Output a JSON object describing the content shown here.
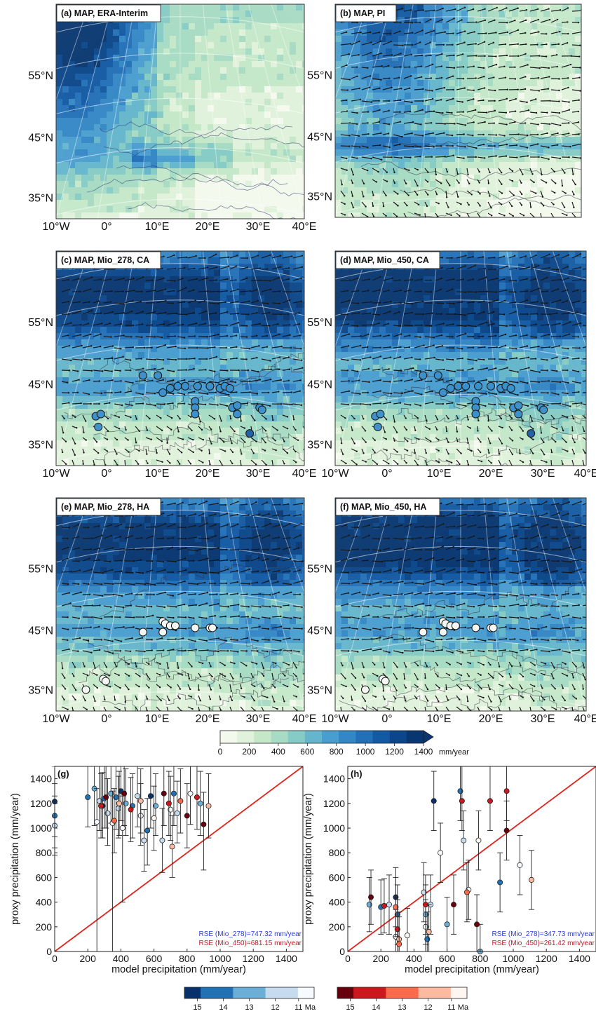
{
  "maps": [
    {
      "label": "(a) MAP, ERA-Interim",
      "winds": false,
      "sites": null,
      "variant": 0,
      "lat_labels": [
        "55°N",
        "45°N",
        "35°N"
      ],
      "lon_labels": [
        "10°W",
        "0°",
        "10°E",
        "20°E",
        "30°E",
        "40°E"
      ]
    },
    {
      "label": "(b) MAP, PI",
      "winds": true,
      "sites": null,
      "variant": 1,
      "lat_labels": [
        "55°N",
        "45°N",
        "35°N"
      ],
      "lon_labels": []
    },
    {
      "label": "(c) MAP, Mio_278, CA",
      "winds": true,
      "sites": "blue",
      "variant": 2,
      "lat_labels": [
        "55°N",
        "45°N",
        "35°N"
      ],
      "lon_labels": [
        "10°W",
        "0°",
        "10°E",
        "20°E",
        "30°E",
        "40°E"
      ]
    },
    {
      "label": "(d) MAP, Mio_450, CA",
      "winds": true,
      "sites": "blue",
      "variant": 3,
      "lat_labels": [
        "55°N",
        "45°N",
        "35°N"
      ],
      "lon_labels": [
        "10°W",
        "0°",
        "10°E",
        "20°E",
        "30°E",
        "40°E"
      ]
    },
    {
      "label": "(e) MAP, Mio_278, HA",
      "winds": true,
      "sites": "white",
      "variant": 4,
      "lat_labels": [
        "55°N",
        "45°N",
        "35°N"
      ],
      "lon_labels": [
        "10°W",
        "0°",
        "10°E",
        "20°E",
        "30°E",
        "40°E"
      ]
    },
    {
      "label": "(f) MAP, Mio_450, HA",
      "winds": true,
      "sites": "white",
      "variant": 5,
      "lat_labels": [
        "55°N",
        "45°N",
        "35°N"
      ],
      "lon_labels": [
        "10°W",
        "0°",
        "10°E",
        "20°E",
        "30°E",
        "40°E"
      ]
    }
  ],
  "colorbar": {
    "ticks": [
      "0",
      "200",
      "400",
      "600",
      "800",
      "1000",
      "1200",
      "1400"
    ],
    "unit": "mm/year",
    "colors": [
      "#f4f9ed",
      "#e0f2db",
      "#c5e8c9",
      "#a7dbc3",
      "#86cbc5",
      "#65b6cc",
      "#4a9ecf",
      "#3487c5",
      "#2370b7",
      "#135aa3",
      "#0a4689",
      "#083670"
    ]
  },
  "age_colorbars": [
    {
      "ticks": [
        "15",
        "14",
        "13",
        "12",
        "11"
      ],
      "unit": "Ma",
      "colors": [
        "#08306b",
        "#2171b5",
        "#6baed6",
        "#c6dbef",
        "#f7fbff"
      ]
    },
    {
      "ticks": [
        "15",
        "14",
        "13",
        "12",
        "11"
      ],
      "unit": "Ma",
      "colors": [
        "#67000d",
        "#cb181d",
        "#fb6a4a",
        "#fcbba1",
        "#fff5f0"
      ]
    }
  ],
  "chart_data": [
    {
      "type": "scatter",
      "panel_label": "(g)",
      "xlabel": "model precipitation (mm/year)",
      "ylabel": "proxy precipitation (mm/year)",
      "xlim": [
        0,
        1500
      ],
      "ylim": [
        0,
        1500
      ],
      "xticks": [
        0,
        200,
        400,
        600,
        800,
        1000,
        1200,
        1400
      ],
      "yticks": [
        0,
        200,
        400,
        600,
        800,
        1000,
        1200,
        1400
      ],
      "one_to_one_line": true,
      "rse": [
        {
          "label": "RSE (Mio_278)=747.32 mm/year",
          "color": "#2b3bd6"
        },
        {
          "label": "RSE (Mio_450)=681.15 mm/year",
          "color": "#c8182c"
        }
      ],
      "series": [
        {
          "name": "Mio_278",
          "color_scale": "blue",
          "points": [
            [
              0,
              1215,
              1500,
              930,
              15
            ],
            [
              0,
              1100,
              1360,
              840,
              14
            ],
            [
              0,
              1020,
              1260,
              780,
              12
            ],
            [
              200,
              1250,
              1500,
              1010,
              14
            ],
            [
              240,
              1320,
              1500,
              1020,
              13
            ],
            [
              255,
              1050,
              1320,
              0,
              11
            ],
            [
              270,
              1220,
              1500,
              980,
              12
            ],
            [
              290,
              1180,
              1450,
              920,
              15
            ],
            [
              300,
              1240,
              1500,
              1000,
              14
            ],
            [
              320,
              1120,
              1400,
              860,
              12
            ],
            [
              340,
              1280,
              1500,
              1040,
              13
            ],
            [
              350,
              1040,
              1300,
              0,
              11
            ],
            [
              370,
              1250,
              1500,
              990,
              14
            ],
            [
              385,
              1160,
              1420,
              920,
              12
            ],
            [
              400,
              1300,
              1500,
              1060,
              15
            ],
            [
              410,
              1000,
              1260,
              400,
              11
            ],
            [
              430,
              1200,
              1480,
              940,
              13
            ],
            [
              470,
              1180,
              1440,
              920,
              14
            ],
            [
              500,
              1260,
              1500,
              1010,
              12
            ],
            [
              520,
              1100,
              1360,
              860,
              11
            ],
            [
              540,
              900,
              1150,
              650,
              12
            ],
            [
              560,
              980,
              1240,
              700,
              14
            ],
            [
              580,
              1260,
              1500,
              1000,
              15
            ],
            [
              610,
              1180,
              1440,
              940,
              13
            ],
            [
              650,
              900,
              1160,
              640,
              12
            ],
            [
              700,
              1150,
              1420,
              900,
              11
            ],
            [
              720,
              1280,
              1500,
              1020,
              14
            ],
            [
              740,
              1120,
              1380,
              880,
              12
            ],
            [
              820,
              1280,
              1500,
              1030,
              11
            ],
            [
              880,
              1200,
              1460,
              940,
              13
            ]
          ]
        },
        {
          "name": "Mio_450",
          "color_scale": "red",
          "points": [
            [
              280,
              1180,
              1440,
              920,
              14
            ],
            [
              310,
              1250,
              1500,
              1000,
              15
            ],
            [
              360,
              1060,
              1320,
              800,
              13
            ],
            [
              390,
              1200,
              1460,
              940,
              12
            ],
            [
              420,
              1280,
              1500,
              1020,
              15
            ],
            [
              460,
              1150,
              1410,
              890,
              14
            ],
            [
              520,
              1220,
              1480,
              960,
              12
            ],
            [
              600,
              1080,
              1340,
              820,
              11
            ],
            [
              660,
              1280,
              1500,
              1020,
              15
            ],
            [
              690,
              1200,
              1460,
              940,
              14
            ],
            [
              710,
              850,
              1100,
              600,
              12
            ],
            [
              760,
              1220,
              1480,
              960,
              13
            ],
            [
              800,
              1100,
              1360,
              840,
              15
            ],
            [
              860,
              1250,
              1500,
              990,
              14
            ],
            [
              900,
              1030,
              1290,
              660,
              15
            ],
            [
              930,
              1180,
              1440,
              920,
              12
            ]
          ]
        }
      ]
    },
    {
      "type": "scatter",
      "panel_label": "(h)",
      "xlabel": "model precipitation (mm/year)",
      "ylabel": "proxy precipitation (mm/year)",
      "xlim": [
        0,
        1500
      ],
      "ylim": [
        0,
        1500
      ],
      "xticks": [
        0,
        200,
        400,
        600,
        800,
        1000,
        1200,
        1400
      ],
      "yticks": [
        0,
        200,
        400,
        600,
        800,
        1000,
        1200,
        1400
      ],
      "one_to_one_line": true,
      "rse": [
        {
          "label": "RSE (Mio_278)=347.73 mm/year",
          "color": "#2b3bd6"
        },
        {
          "label": "RSE (Mio_450)=261.42 mm/year",
          "color": "#c8182c"
        }
      ],
      "series": [
        {
          "name": "Mio_278",
          "color_scale": "blue",
          "points": [
            [
              130,
              380,
              600,
              160,
              13
            ],
            [
              200,
              360,
              580,
              140,
              14
            ],
            [
              250,
              380,
              620,
              140,
              12
            ],
            [
              290,
              440,
              680,
              200,
              15
            ],
            [
              290,
              120,
              340,
              0,
              11
            ],
            [
              300,
              300,
              540,
              60,
              14
            ],
            [
              460,
              480,
              720,
              240,
              12
            ],
            [
              470,
              300,
              540,
              60,
              13
            ],
            [
              470,
              200,
              420,
              0,
              11
            ],
            [
              480,
              100,
              320,
              0,
              14
            ],
            [
              500,
              380,
              620,
              140,
              12
            ],
            [
              520,
              1220,
              1460,
              980,
              15
            ],
            [
              560,
              800,
              1040,
              560,
              11
            ],
            [
              600,
              220,
              440,
              0,
              13
            ],
            [
              680,
              1300,
              1500,
              1060,
              14
            ],
            [
              700,
              900,
              1140,
              660,
              12
            ],
            [
              730,
              500,
              740,
              260,
              11
            ],
            [
              800,
              0,
              220,
              0,
              13
            ],
            [
              920,
              560,
              800,
              320,
              14
            ],
            [
              1040,
              700,
              940,
              460,
              11
            ]
          ]
        },
        {
          "name": "Mio_450",
          "color_scale": "red",
          "points": [
            [
              140,
              440,
              660,
              220,
              15
            ],
            [
              220,
              370,
              590,
              150,
              14
            ],
            [
              290,
              360,
              600,
              120,
              13
            ],
            [
              300,
              180,
              420,
              0,
              14
            ],
            [
              310,
              100,
              320,
              0,
              12
            ],
            [
              310,
              60,
              280,
              0,
              13
            ],
            [
              360,
              130,
              350,
              0,
              11
            ],
            [
              470,
              380,
              620,
              140,
              14
            ],
            [
              490,
              160,
              380,
              0,
              12
            ],
            [
              640,
              380,
              620,
              140,
              15
            ],
            [
              690,
              1220,
              1500,
              980,
              14
            ],
            [
              720,
              480,
              720,
              240,
              13
            ],
            [
              780,
              220,
              460,
              0,
              15
            ],
            [
              790,
              900,
              1140,
              660,
              11
            ],
            [
              860,
              1220,
              1500,
              980,
              14
            ],
            [
              960,
              980,
              1220,
              740,
              15
            ],
            [
              960,
              1300,
              1500,
              1060,
              14
            ],
            [
              1110,
              580,
              820,
              340,
              12
            ]
          ]
        }
      ]
    }
  ]
}
